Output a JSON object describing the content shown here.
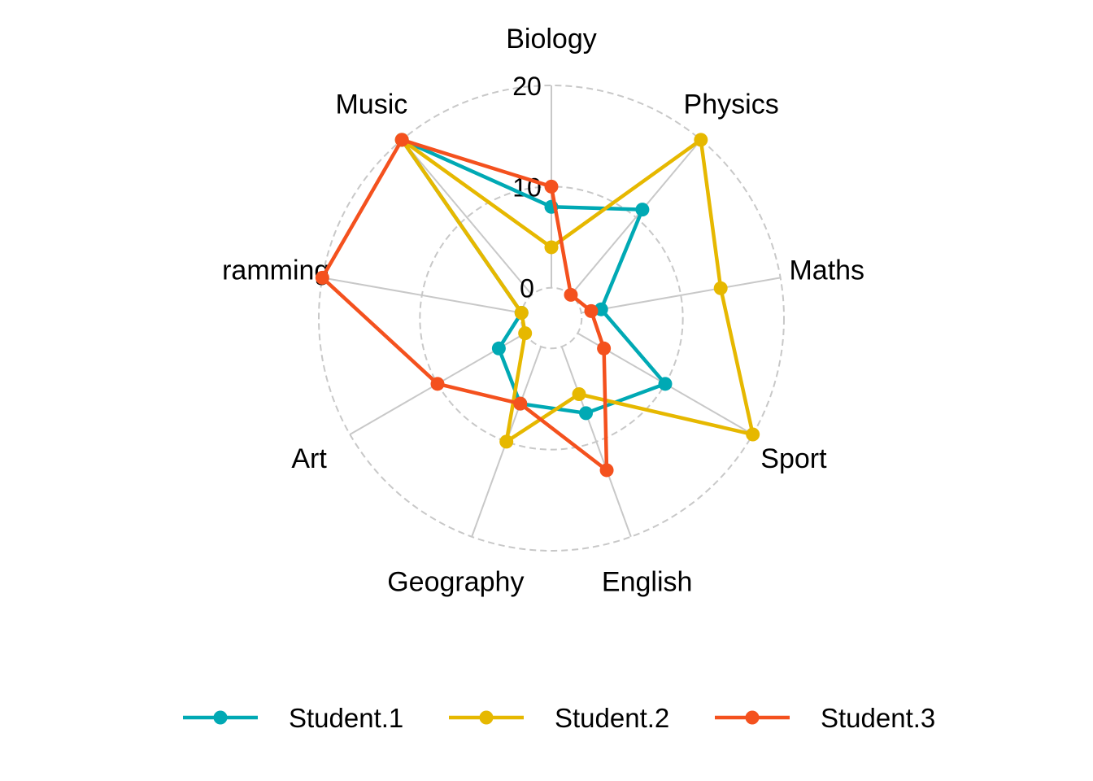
{
  "colors": {
    "Student.1": "#00A9B4",
    "Student.2": "#E6B800",
    "Student.3": "#F4511E",
    "grid": "#c8c8c8",
    "background": "#ffffff"
  },
  "chart_data": {
    "type": "radar",
    "axes": [
      "Biology",
      "Physics",
      "Maths",
      "Sport",
      "English",
      "Geography",
      "Art",
      "ramming",
      "Music"
    ],
    "rlim": [
      -3,
      20
    ],
    "ticks": [
      0,
      10,
      20
    ],
    "tick_labels": [
      "0",
      "10",
      "20"
    ],
    "grid": true,
    "legend_position": "bottom",
    "series": [
      {
        "name": "Student.1",
        "values": [
          8,
          11,
          2,
          10,
          7,
          6,
          3,
          0,
          20
        ]
      },
      {
        "name": "Student.2",
        "values": [
          4,
          20,
          14,
          20,
          5,
          10,
          0,
          0,
          20
        ]
      },
      {
        "name": "Student.3",
        "values": [
          10,
          0,
          1,
          3,
          13,
          6,
          10,
          20,
          20
        ]
      }
    ]
  }
}
